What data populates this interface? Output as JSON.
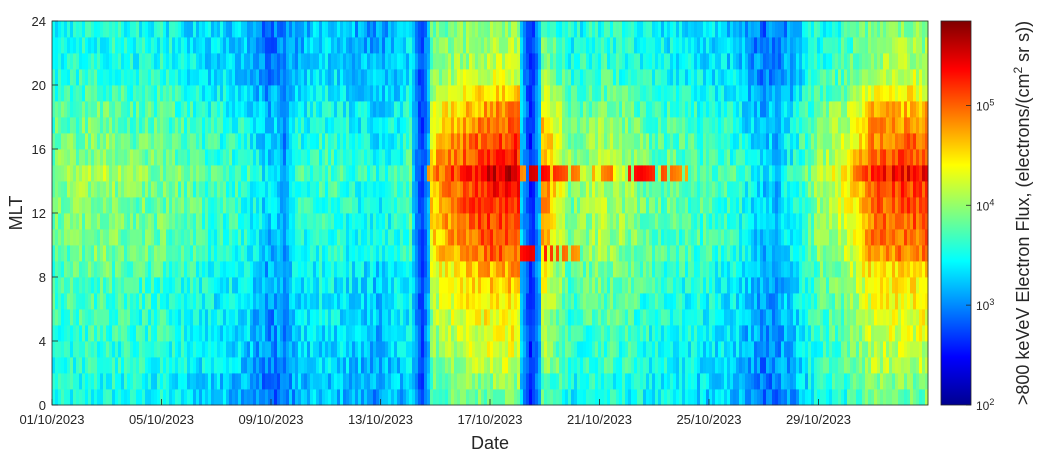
{
  "chart_data": {
    "type": "heatmap",
    "title": "",
    "xlabel": "Date",
    "ylabel": "MLT",
    "colorbar_label": ">800 keVeV Electron Flux, (electrons/(cm",
    "colorbar_label_sup": "2",
    "colorbar_label_tail": " sr s))",
    "colorbar_scale": "log",
    "colorbar_range": [
      100,
      700000
    ],
    "colorbar_ticks": [
      {
        "value": 100,
        "label": "10",
        "exp": "2"
      },
      {
        "value": 1000,
        "label": "10",
        "exp": "3"
      },
      {
        "value": 10000,
        "label": "10",
        "exp": "4"
      },
      {
        "value": 100000,
        "label": "10",
        "exp": "5"
      }
    ],
    "colormap": "jet",
    "x_range": [
      "2023-10-01",
      "2023-11-02"
    ],
    "x_ticks": [
      {
        "date": "2023-10-01",
        "label": "01/10/2023"
      },
      {
        "date": "2023-10-05",
        "label": "05/10/2023"
      },
      {
        "date": "2023-10-09",
        "label": "09/10/2023"
      },
      {
        "date": "2023-10-13",
        "label": "13/10/2023"
      },
      {
        "date": "2023-10-17",
        "label": "17/10/2023"
      },
      {
        "date": "2023-10-21",
        "label": "21/10/2023"
      },
      {
        "date": "2023-10-25",
        "label": "25/10/2023"
      },
      {
        "date": "2023-10-29",
        "label": "29/10/2023"
      }
    ],
    "ylim": [
      0,
      24
    ],
    "y_ticks": [
      0,
      4,
      8,
      12,
      16,
      20,
      24
    ],
    "mlt_bin_width": 1,
    "grid": false,
    "day_profile": [
      {
        "date": "2023-10-01",
        "log_flux": 3.7
      },
      {
        "date": "2023-10-02",
        "log_flux": 3.75
      },
      {
        "date": "2023-10-03",
        "log_flux": 3.8
      },
      {
        "date": "2023-10-04",
        "log_flux": 3.7
      },
      {
        "date": "2023-10-05",
        "log_flux": 3.7
      },
      {
        "date": "2023-10-06",
        "log_flux": 3.6
      },
      {
        "date": "2023-10-07",
        "log_flux": 3.5
      },
      {
        "date": "2023-10-08",
        "log_flux": 3.45
      },
      {
        "date": "2023-10-09",
        "log_flux": 3.1
      },
      {
        "date": "2023-10-10",
        "log_flux": 3.4
      },
      {
        "date": "2023-10-11",
        "log_flux": 3.5
      },
      {
        "date": "2023-10-12",
        "log_flux": 3.4
      },
      {
        "date": "2023-10-13",
        "log_flux": 3.3
      },
      {
        "date": "2023-10-14",
        "log_flux": 3.5
      },
      {
        "date": "2023-10-15",
        "log_flux": 4.3
      },
      {
        "date": "2023-10-16",
        "log_flux": 4.55
      },
      {
        "date": "2023-10-17",
        "log_flux": 4.7
      },
      {
        "date": "2023-10-18",
        "log_flux": 4.75
      },
      {
        "date": "2023-10-19",
        "log_flux": 4.4
      },
      {
        "date": "2023-10-20",
        "log_flux": 3.7
      },
      {
        "date": "2023-10-21",
        "log_flux": 3.9
      },
      {
        "date": "2023-10-22",
        "log_flux": 3.8
      },
      {
        "date": "2023-10-23",
        "log_flux": 3.65
      },
      {
        "date": "2023-10-24",
        "log_flux": 3.6
      },
      {
        "date": "2023-10-25",
        "log_flux": 3.55
      },
      {
        "date": "2023-10-26",
        "log_flux": 3.45
      },
      {
        "date": "2023-10-27",
        "log_flux": 3.1
      },
      {
        "date": "2023-10-28",
        "log_flux": 3.3
      },
      {
        "date": "2023-10-29",
        "log_flux": 3.8
      },
      {
        "date": "2023-10-30",
        "log_flux": 4.0
      },
      {
        "date": "2023-10-31",
        "log_flux": 4.55
      },
      {
        "date": "2023-11-01",
        "log_flux": 4.6
      },
      {
        "date": "2023-11-02",
        "log_flux": 4.6
      }
    ],
    "mlt_profile": [
      {
        "mlt": 0.5,
        "offset": -0.55
      },
      {
        "mlt": 1.5,
        "offset": -0.5
      },
      {
        "mlt": 2.5,
        "offset": -0.35
      },
      {
        "mlt": 3.5,
        "offset": -0.3
      },
      {
        "mlt": 4.5,
        "offset": -0.25
      },
      {
        "mlt": 5.5,
        "offset": -0.2
      },
      {
        "mlt": 6.5,
        "offset": -0.15
      },
      {
        "mlt": 7.5,
        "offset": -0.1
      },
      {
        "mlt": 8.5,
        "offset": 0.0
      },
      {
        "mlt": 9.5,
        "offset": 0.2
      },
      {
        "mlt": 10.5,
        "offset": 0.25
      },
      {
        "mlt": 11.5,
        "offset": 0.3
      },
      {
        "mlt": 12.5,
        "offset": 0.35
      },
      {
        "mlt": 13.5,
        "offset": 0.4
      },
      {
        "mlt": 14.5,
        "offset": 0.55
      },
      {
        "mlt": 15.5,
        "offset": 0.35
      },
      {
        "mlt": 16.5,
        "offset": 0.25
      },
      {
        "mlt": 17.5,
        "offset": 0.15
      },
      {
        "mlt": 18.5,
        "offset": 0.05
      },
      {
        "mlt": 19.5,
        "offset": -0.15
      },
      {
        "mlt": 20.5,
        "offset": -0.3
      },
      {
        "mlt": 21.5,
        "offset": -0.4
      },
      {
        "mlt": 22.5,
        "offset": -0.45
      },
      {
        "mlt": 23.5,
        "offset": -0.5
      }
    ],
    "dropouts": [
      {
        "date": "2023-10-09",
        "log_flux": 2.8
      },
      {
        "date": "2023-10-14",
        "log_flux": 2.5
      },
      {
        "date": "2023-10-18",
        "log_flux": 2.4
      },
      {
        "date": "2023-10-27",
        "log_flux": 2.9
      }
    ],
    "peaks": [
      {
        "date": "2023-10-16",
        "mlt": 14.5,
        "log_flux": 5.5
      },
      {
        "date": "2023-10-18",
        "mlt": 14.5,
        "log_flux": 5.55
      },
      {
        "date": "2023-10-18",
        "mlt": 9.5,
        "log_flux": 5.45
      },
      {
        "date": "2023-10-22",
        "mlt": 14.5,
        "log_flux": 5.4
      }
    ]
  }
}
